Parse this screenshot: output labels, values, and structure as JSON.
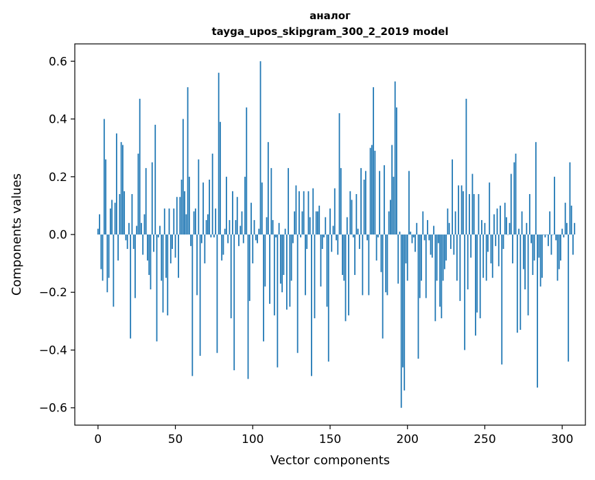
{
  "chart_data": {
    "type": "bar",
    "title": "аналог",
    "subtitle": "tayga_upos_skipgram_300_2_2019 model",
    "xlabel": "Vector components",
    "ylabel": "Components values",
    "xlim": [
      -15,
      315
    ],
    "ylim": [
      -0.66,
      0.66
    ],
    "xticks": [
      0,
      50,
      100,
      150,
      200,
      250,
      300
    ],
    "yticks": [
      -0.6,
      -0.4,
      -0.2,
      0.0,
      0.2,
      0.4,
      0.6
    ],
    "ytick_labels": [
      "−0.6",
      "−0.4",
      "−0.2",
      "0.0",
      "0.2",
      "0.4",
      "0.6"
    ],
    "bar_color": "#1f77b4",
    "values": [
      0.02,
      0.07,
      -0.12,
      -0.16,
      0.4,
      0.26,
      -0.2,
      -0.15,
      0.09,
      0.12,
      -0.25,
      0.11,
      0.35,
      -0.09,
      0.14,
      0.32,
      0.31,
      0.15,
      -0.02,
      -0.05,
      0.04,
      -0.36,
      0.14,
      -0.05,
      -0.22,
      0.03,
      0.28,
      0.47,
      0.04,
      -0.07,
      0.07,
      0.23,
      -0.09,
      -0.14,
      -0.19,
      0.25,
      -0.06,
      0.38,
      -0.37,
      -0.01,
      0.03,
      -0.16,
      -0.27,
      0.09,
      -0.15,
      -0.28,
      0.09,
      -0.1,
      -0.05,
      0.09,
      -0.08,
      0.13,
      -0.15,
      0.13,
      0.19,
      0.4,
      0.15,
      0.07,
      0.51,
      0.2,
      -0.04,
      -0.49,
      0.08,
      0.09,
      -0.21,
      0.26,
      -0.42,
      -0.03,
      0.18,
      -0.1,
      0.05,
      0.07,
      0.19,
      -0.01,
      0.28,
      -0.01,
      0.09,
      -0.41,
      0.56,
      0.39,
      -0.09,
      -0.07,
      0.02,
      0.2,
      -0.03,
      0.05,
      -0.29,
      0.15,
      -0.47,
      0.05,
      0.13,
      -0.04,
      0.03,
      0.08,
      -0.03,
      0.2,
      0.44,
      -0.5,
      -0.23,
      0.11,
      -0.1,
      0.05,
      -0.02,
      -0.03,
      0.02,
      0.6,
      0.18,
      -0.37,
      -0.18,
      0.06,
      0.32,
      -0.24,
      0.23,
      0.05,
      -0.28,
      -0.01,
      -0.46,
      0.04,
      -0.17,
      -0.2,
      -0.14,
      0.02,
      -0.26,
      0.23,
      -0.25,
      -0.16,
      -0.03,
      0.08,
      0.17,
      -0.41,
      0.15,
      -0.01,
      0.08,
      0.15,
      -0.21,
      -0.05,
      0.15,
      0.06,
      -0.49,
      0.16,
      -0.29,
      0.08,
      0.08,
      0.1,
      -0.18,
      -0.05,
      -0.01,
      0.06,
      -0.25,
      -0.44,
      0.09,
      -0.06,
      0.03,
      0.16,
      -0.02,
      -0.07,
      0.42,
      0.23,
      -0.14,
      -0.16,
      -0.3,
      0.06,
      -0.28,
      0.15,
      0.12,
      -0.01,
      -0.14,
      0.14,
      0.02,
      -0.05,
      0.23,
      -0.21,
      0.19,
      0.22,
      -0.02,
      -0.21,
      0.3,
      0.31,
      0.51,
      0.29,
      -0.09,
      -0.01,
      0.22,
      -0.13,
      -0.36,
      0.24,
      -0.2,
      -0.21,
      0.08,
      0.12,
      0.31,
      0.2,
      0.53,
      0.44,
      -0.17,
      0.01,
      -0.6,
      -0.46,
      -0.54,
      -0.1,
      -0.16,
      0.22,
      0.01,
      -0.03,
      -0.01,
      -0.06,
      0.04,
      -0.43,
      -0.22,
      -0.16,
      0.08,
      -0.02,
      -0.22,
      0.05,
      -0.02,
      -0.07,
      -0.08,
      0.03,
      -0.3,
      -0.16,
      -0.03,
      -0.25,
      -0.29,
      -0.16,
      -0.12,
      -0.09,
      0.09,
      0.04,
      -0.05,
      0.26,
      -0.07,
      0.08,
      -0.16,
      0.17,
      -0.23,
      0.17,
      0.15,
      -0.4,
      0.47,
      -0.19,
      0.14,
      -0.08,
      0.21,
      0.14,
      -0.35,
      -0.27,
      0.14,
      -0.29,
      0.05,
      -0.15,
      0.04,
      -0.16,
      -0.06,
      0.18,
      -0.1,
      -0.15,
      0.07,
      -0.04,
      0.09,
      -0.11,
      0.1,
      -0.45,
      -0.05,
      0.11,
      0.06,
      0.0,
      0.04,
      0.21,
      -0.1,
      0.25,
      0.28,
      -0.34,
      0.02,
      -0.33,
      0.08,
      -0.12,
      -0.19,
      0.04,
      -0.28,
      0.14,
      -0.03,
      -0.14,
      -0.09,
      0.32,
      -0.53,
      -0.08,
      -0.18,
      -0.15,
      0.0,
      -0.01,
      0.0,
      -0.04,
      0.08,
      -0.07,
      0.0,
      0.2,
      -0.02,
      -0.16,
      -0.12,
      -0.09,
      0.02,
      -0.01,
      0.11,
      0.04,
      -0.44,
      0.25,
      0.1,
      -0.07,
      0.04
    ]
  }
}
